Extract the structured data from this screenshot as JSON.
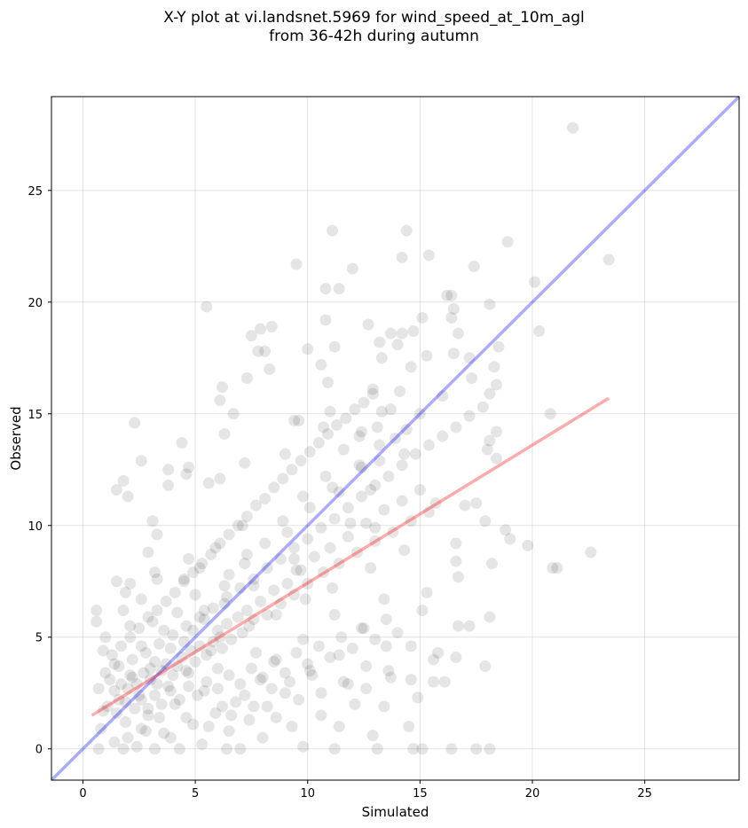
{
  "chart_data": {
    "type": "scatter",
    "title": "X-Y plot at vi.landsnet.5969 for wind_speed_at_10m_agl",
    "subtitle": "from 36-42h during autumn",
    "xlabel": "Simulated",
    "ylabel": "Observed",
    "xlim": [
      -1.4,
      29.2
    ],
    "ylim": [
      -1.4,
      29.2
    ],
    "xticks": [
      0,
      5,
      10,
      15,
      20,
      25
    ],
    "yticks": [
      0,
      5,
      10,
      15,
      20,
      25
    ],
    "grid": true,
    "point_color": "#000000",
    "point_opacity": 0.1,
    "one_to_one_line": {
      "x": [
        -1.4,
        29.2
      ],
      "y": [
        -1.4,
        29.2
      ],
      "color": "#0000ff"
    },
    "regression_line": {
      "x": [
        0.4,
        23.4
      ],
      "y": [
        1.5,
        15.7
      ],
      "color": "#ff0000"
    },
    "points": [
      [
        21.8,
        27.8
      ],
      [
        23.4,
        21.9
      ],
      [
        11.1,
        23.2
      ],
      [
        14.4,
        23.2
      ],
      [
        18.9,
        22.7
      ],
      [
        15.4,
        22.1
      ],
      [
        14.2,
        22.0
      ],
      [
        9.5,
        21.7
      ],
      [
        12.0,
        21.5
      ],
      [
        17.4,
        21.6
      ],
      [
        20.1,
        20.9
      ],
      [
        11.4,
        20.6
      ],
      [
        10.8,
        20.6
      ],
      [
        16.4,
        20.3
      ],
      [
        16.2,
        20.3
      ],
      [
        5.5,
        19.8
      ],
      [
        18.1,
        19.9
      ],
      [
        16.5,
        19.7
      ],
      [
        15.1,
        19.3
      ],
      [
        10.8,
        19.2
      ],
      [
        16.4,
        19.3
      ],
      [
        12.7,
        19.0
      ],
      [
        8.4,
        18.9
      ],
      [
        7.9,
        18.8
      ],
      [
        14.7,
        18.7
      ],
      [
        14.2,
        18.6
      ],
      [
        13.7,
        18.6
      ],
      [
        20.3,
        18.7
      ],
      [
        16.7,
        18.6
      ],
      [
        7.5,
        18.5
      ],
      [
        18.5,
        18.0
      ],
      [
        14.0,
        18.1
      ],
      [
        11.2,
        18.0
      ],
      [
        10.0,
        17.9
      ],
      [
        13.2,
        18.2
      ],
      [
        7.8,
        17.8
      ],
      [
        8.1,
        17.8
      ],
      [
        17.2,
        17.5
      ],
      [
        16.5,
        17.7
      ],
      [
        13.3,
        17.5
      ],
      [
        15.3,
        17.6
      ],
      [
        14.6,
        17.1
      ],
      [
        8.3,
        17.0
      ],
      [
        18.3,
        17.1
      ],
      [
        10.6,
        17.2
      ],
      [
        17.3,
        16.6
      ],
      [
        7.3,
        16.6
      ],
      [
        6.2,
        16.2
      ],
      [
        18.4,
        16.3
      ],
      [
        10.9,
        16.4
      ],
      [
        18.1,
        15.9
      ],
      [
        12.9,
        16.1
      ],
      [
        16.0,
        15.8
      ],
      [
        6.1,
        15.6
      ],
      [
        9.6,
        14.7
      ],
      [
        13.7,
        15.2
      ],
      [
        11.0,
        15.1
      ],
      [
        15.0,
        15.0
      ],
      [
        20.8,
        15.0
      ],
      [
        6.7,
        15.0
      ],
      [
        2.3,
        14.6
      ],
      [
        9.4,
        14.7
      ],
      [
        10.7,
        14.4
      ],
      [
        18.4,
        14.2
      ],
      [
        6.3,
        14.1
      ],
      [
        13.1,
        14.4
      ],
      [
        12.3,
        14.0
      ],
      [
        18.1,
        13.8
      ],
      [
        4.4,
        13.7
      ],
      [
        14.3,
        13.2
      ],
      [
        9.0,
        13.2
      ],
      [
        18.0,
        13.4
      ],
      [
        7.2,
        12.8
      ],
      [
        2.6,
        12.9
      ],
      [
        13.2,
        12.9
      ],
      [
        18.4,
        13.0
      ],
      [
        4.7,
        12.6
      ],
      [
        3.8,
        12.5
      ],
      [
        12.4,
        12.6
      ],
      [
        1.8,
        12.0
      ],
      [
        4.6,
        12.3
      ],
      [
        6.1,
        12.1
      ],
      [
        5.6,
        11.9
      ],
      [
        3.8,
        11.8
      ],
      [
        11.4,
        11.5
      ],
      [
        12.8,
        11.6
      ],
      [
        1.5,
        11.6
      ],
      [
        15.7,
        11.0
      ],
      [
        2.0,
        11.3
      ],
      [
        17.5,
        11.0
      ],
      [
        17.0,
        10.9
      ],
      [
        3.1,
        10.2
      ],
      [
        17.9,
        10.2
      ],
      [
        7.1,
        10.0
      ],
      [
        11.9,
        10.1
      ],
      [
        13.0,
        9.9
      ],
      [
        18.8,
        9.8
      ],
      [
        3.3,
        9.6
      ],
      [
        19.0,
        9.4
      ],
      [
        16.6,
        9.2
      ],
      [
        19.8,
        9.1
      ],
      [
        5.9,
        9.0
      ],
      [
        2.9,
        8.8
      ],
      [
        14.3,
        8.9
      ],
      [
        22.6,
        8.8
      ],
      [
        16.6,
        8.4
      ],
      [
        9.4,
        8.5
      ],
      [
        7.3,
        8.7
      ],
      [
        18.2,
        8.3
      ],
      [
        4.7,
        8.5
      ],
      [
        21.1,
        8.1
      ],
      [
        20.9,
        8.1
      ],
      [
        5.2,
        8.1
      ],
      [
        3.2,
        7.9
      ],
      [
        9.5,
        8.0
      ],
      [
        12.8,
        8.1
      ],
      [
        6.5,
        7.8
      ],
      [
        16.7,
        7.7
      ],
      [
        4.5,
        7.6
      ],
      [
        1.5,
        7.5
      ],
      [
        3.3,
        7.6
      ],
      [
        2.1,
        7.4
      ],
      [
        7.6,
        7.3
      ],
      [
        11.1,
        7.2
      ],
      [
        15.3,
        7.0
      ],
      [
        1.9,
        7.0
      ],
      [
        5.0,
        6.9
      ],
      [
        2.6,
        6.7
      ],
      [
        9.9,
        6.7
      ],
      [
        13.4,
        6.7
      ],
      [
        6.3,
        6.5
      ],
      [
        0.6,
        6.2
      ],
      [
        1.8,
        6.2
      ],
      [
        4.2,
        6.1
      ],
      [
        8.6,
        6.0
      ],
      [
        15.1,
        6.2
      ],
      [
        11.2,
        6.0
      ],
      [
        18.1,
        5.9
      ],
      [
        5.4,
        5.8
      ],
      [
        3.1,
        5.7
      ],
      [
        0.6,
        5.7
      ],
      [
        2.1,
        5.5
      ],
      [
        7.4,
        5.5
      ],
      [
        16.7,
        5.5
      ],
      [
        17.2,
        5.5
      ],
      [
        12.4,
        5.4
      ],
      [
        3.6,
        5.3
      ],
      [
        1.0,
        5.0
      ],
      [
        6.1,
        5.0
      ],
      [
        9.8,
        4.9
      ],
      [
        4.5,
        4.8
      ],
      [
        2.6,
        4.6
      ],
      [
        14.6,
        4.6
      ],
      [
        13.5,
        4.6
      ],
      [
        0.9,
        4.4
      ],
      [
        15.8,
        4.3
      ],
      [
        5.7,
        4.4
      ],
      [
        7.7,
        4.3
      ],
      [
        11.4,
        4.2
      ],
      [
        16.6,
        4.1
      ],
      [
        8.6,
        4.0
      ],
      [
        1.4,
        3.8
      ],
      [
        3.2,
        3.9
      ],
      [
        17.9,
        3.7
      ],
      [
        12.6,
        3.7
      ],
      [
        6.0,
        3.6
      ],
      [
        10.1,
        3.5
      ],
      [
        4.7,
        3.4
      ],
      [
        2.1,
        3.3
      ],
      [
        13.7,
        3.2
      ],
      [
        7.9,
        3.1
      ],
      [
        15.6,
        3.0
      ],
      [
        16.1,
        3.0
      ],
      [
        11.8,
        2.9
      ],
      [
        3.8,
        2.8
      ],
      [
        0.7,
        2.7
      ],
      [
        5.4,
        2.6
      ],
      [
        9.0,
        2.5
      ],
      [
        2.5,
        2.4
      ],
      [
        14.9,
        2.3
      ],
      [
        1.6,
        2.2
      ],
      [
        6.8,
        2.1
      ],
      [
        12.1,
        2.0
      ],
      [
        4.1,
        2.0
      ],
      [
        8.2,
        1.9
      ],
      [
        13.4,
        1.9
      ],
      [
        2.9,
        1.8
      ],
      [
        0.9,
        1.7
      ],
      [
        5.9,
        1.6
      ],
      [
        10.6,
        1.5
      ],
      [
        3.4,
        1.4
      ],
      [
        7.4,
        1.3
      ],
      [
        1.9,
        1.2
      ],
      [
        4.9,
        1.1
      ],
      [
        9.3,
        1.0
      ],
      [
        11.4,
        1.0
      ],
      [
        0.8,
        0.9
      ],
      [
        2.8,
        0.8
      ],
      [
        6.5,
        0.8
      ],
      [
        12.9,
        0.6
      ],
      [
        14.5,
        1.0
      ],
      [
        3.9,
        0.5
      ],
      [
        8.0,
        0.5
      ],
      [
        1.4,
        0.3
      ],
      [
        5.3,
        0.2
      ],
      [
        9.8,
        0.1
      ],
      [
        2.4,
        0.1
      ],
      [
        4.3,
        0.0
      ],
      [
        0.7,
        0.0
      ],
      [
        6.4,
        0.0
      ],
      [
        11.2,
        0.0
      ],
      [
        13.1,
        0.0
      ],
      [
        14.7,
        0.0
      ],
      [
        16.4,
        0.0
      ],
      [
        17.5,
        0.0
      ],
      [
        18.1,
        0.0
      ],
      [
        15.1,
        0.0
      ],
      [
        3.2,
        0.0
      ],
      [
        7.0,
        0.0
      ],
      [
        1.8,
        0.0
      ],
      [
        1.2,
        3.1
      ],
      [
        1.4,
        2.6
      ],
      [
        1.7,
        2.9
      ],
      [
        2.0,
        2.7
      ],
      [
        2.2,
        3.2
      ],
      [
        2.4,
        2.9
      ],
      [
        2.7,
        3.4
      ],
      [
        3.0,
        3.1
      ],
      [
        3.3,
        2.9
      ],
      [
        3.5,
        3.5
      ],
      [
        3.7,
        3.8
      ],
      [
        4.0,
        3.3
      ],
      [
        4.2,
        3.7
      ],
      [
        4.4,
        4.1
      ],
      [
        4.6,
        3.5
      ],
      [
        4.8,
        4.4
      ],
      [
        5.0,
        3.9
      ],
      [
        5.2,
        4.6
      ],
      [
        5.5,
        4.2
      ],
      [
        5.8,
        4.8
      ],
      [
        6.0,
        5.3
      ],
      [
        6.2,
        4.5
      ],
      [
        6.4,
        5.6
      ],
      [
        6.6,
        4.9
      ],
      [
        6.9,
        5.9
      ],
      [
        7.1,
        5.2
      ],
      [
        7.3,
        6.2
      ],
      [
        7.6,
        5.8
      ],
      [
        7.9,
        6.6
      ],
      [
        8.2,
        6.0
      ],
      [
        8.5,
        7.1
      ],
      [
        8.8,
        6.5
      ],
      [
        9.1,
        7.4
      ],
      [
        9.4,
        6.9
      ],
      [
        9.7,
        8.0
      ],
      [
        10.0,
        7.4
      ],
      [
        10.3,
        8.6
      ],
      [
        10.7,
        7.9
      ],
      [
        11.0,
        9.0
      ],
      [
        11.4,
        8.3
      ],
      [
        11.8,
        9.5
      ],
      [
        12.2,
        8.8
      ],
      [
        12.6,
        10.1
      ],
      [
        13.0,
        9.3
      ],
      [
        13.4,
        10.7
      ],
      [
        13.8,
        9.7
      ],
      [
        14.2,
        11.1
      ],
      [
        14.6,
        10.2
      ],
      [
        15.0,
        11.6
      ],
      [
        15.4,
        10.6
      ],
      [
        1.1,
        1.9
      ],
      [
        1.5,
        1.6
      ],
      [
        1.9,
        2.1
      ],
      [
        2.3,
        1.8
      ],
      [
        2.6,
        2.2
      ],
      [
        2.9,
        1.5
      ],
      [
        3.2,
        2.4
      ],
      [
        3.5,
        2.0
      ],
      [
        3.9,
        2.6
      ],
      [
        4.3,
        2.2
      ],
      [
        4.7,
        2.8
      ],
      [
        5.1,
        2.4
      ],
      [
        5.5,
        3.0
      ],
      [
        6.0,
        2.7
      ],
      [
        6.5,
        3.3
      ],
      [
        7.0,
        2.9
      ],
      [
        7.5,
        3.6
      ],
      [
        8.0,
        3.2
      ],
      [
        8.5,
        3.9
      ],
      [
        9.0,
        3.4
      ],
      [
        9.5,
        4.3
      ],
      [
        10.0,
        3.8
      ],
      [
        10.5,
        4.6
      ],
      [
        11.0,
        4.1
      ],
      [
        11.5,
        5.0
      ],
      [
        12.0,
        4.5
      ],
      [
        12.5,
        5.4
      ],
      [
        13.0,
        4.9
      ],
      [
        13.5,
        5.8
      ],
      [
        14.0,
        5.2
      ],
      [
        1.3,
        4.2
      ],
      [
        1.7,
        4.6
      ],
      [
        2.1,
        5.0
      ],
      [
        2.5,
        5.4
      ],
      [
        2.9,
        5.9
      ],
      [
        3.3,
        6.2
      ],
      [
        3.7,
        6.6
      ],
      [
        4.1,
        7.0
      ],
      [
        4.5,
        7.5
      ],
      [
        4.9,
        7.9
      ],
      [
        5.3,
        8.3
      ],
      [
        5.7,
        8.7
      ],
      [
        6.1,
        9.2
      ],
      [
        6.5,
        9.6
      ],
      [
        6.9,
        10.0
      ],
      [
        7.3,
        10.4
      ],
      [
        7.7,
        10.9
      ],
      [
        8.1,
        11.2
      ],
      [
        8.5,
        11.7
      ],
      [
        8.9,
        12.1
      ],
      [
        9.3,
        12.5
      ],
      [
        9.7,
        12.9
      ],
      [
        10.1,
        13.3
      ],
      [
        10.5,
        13.7
      ],
      [
        10.9,
        14.1
      ],
      [
        11.3,
        14.5
      ],
      [
        11.7,
        14.8
      ],
      [
        12.1,
        15.2
      ],
      [
        12.5,
        15.5
      ],
      [
        12.9,
        15.9
      ],
      [
        1.0,
        3.4
      ],
      [
        1.6,
        3.7
      ],
      [
        2.2,
        4.0
      ],
      [
        2.8,
        4.3
      ],
      [
        3.4,
        4.7
      ],
      [
        4.0,
        5.1
      ],
      [
        4.6,
        5.5
      ],
      [
        5.2,
        5.9
      ],
      [
        5.8,
        6.3
      ],
      [
        6.4,
        6.8
      ],
      [
        7.0,
        7.2
      ],
      [
        7.6,
        7.6
      ],
      [
        8.2,
        8.1
      ],
      [
        8.8,
        8.5
      ],
      [
        9.4,
        9.0
      ],
      [
        10.0,
        9.4
      ],
      [
        10.6,
        9.9
      ],
      [
        11.2,
        10.3
      ],
      [
        11.8,
        10.8
      ],
      [
        12.4,
        11.3
      ],
      [
        13.0,
        11.8
      ],
      [
        13.6,
        12.2
      ],
      [
        14.2,
        12.7
      ],
      [
        14.8,
        13.2
      ],
      [
        15.4,
        13.6
      ],
      [
        16.0,
        14.0
      ],
      [
        16.6,
        14.4
      ],
      [
        17.2,
        14.9
      ],
      [
        17.8,
        15.3
      ],
      [
        13.9,
        13.9
      ],
      [
        2.0,
        0.5
      ],
      [
        2.6,
        0.9
      ],
      [
        3.6,
        0.7
      ],
      [
        4.6,
        1.4
      ],
      [
        5.6,
        1.0
      ],
      [
        6.6,
        1.5
      ],
      [
        7.6,
        1.9
      ],
      [
        8.6,
        1.4
      ],
      [
        9.6,
        2.2
      ],
      [
        10.6,
        2.5
      ],
      [
        11.6,
        3.0
      ],
      [
        12.6,
        2.7
      ],
      [
        13.6,
        3.5
      ],
      [
        14.6,
        3.1
      ],
      [
        15.6,
        4.0
      ],
      [
        8.4,
        2.7
      ],
      [
        9.2,
        3.0
      ],
      [
        10.2,
        3.3
      ],
      [
        7.2,
        2.4
      ],
      [
        6.2,
        1.9
      ],
      [
        3.0,
        3.6
      ],
      [
        3.9,
        4.5
      ],
      [
        4.9,
        5.3
      ],
      [
        5.4,
        6.2
      ],
      [
        6.3,
        7.3
      ],
      [
        7.2,
        8.3
      ],
      [
        8.1,
        9.2
      ],
      [
        8.9,
        10.2
      ],
      [
        9.8,
        11.3
      ],
      [
        10.8,
        12.2
      ],
      [
        11.6,
        13.4
      ],
      [
        12.4,
        14.2
      ],
      [
        13.3,
        15.1
      ],
      [
        14.1,
        16.0
      ],
      [
        9.1,
        9.7
      ],
      [
        10.1,
        10.8
      ],
      [
        11.1,
        11.7
      ],
      [
        12.3,
        12.7
      ],
      [
        13.2,
        13.6
      ],
      [
        14.4,
        14.3
      ]
    ]
  }
}
